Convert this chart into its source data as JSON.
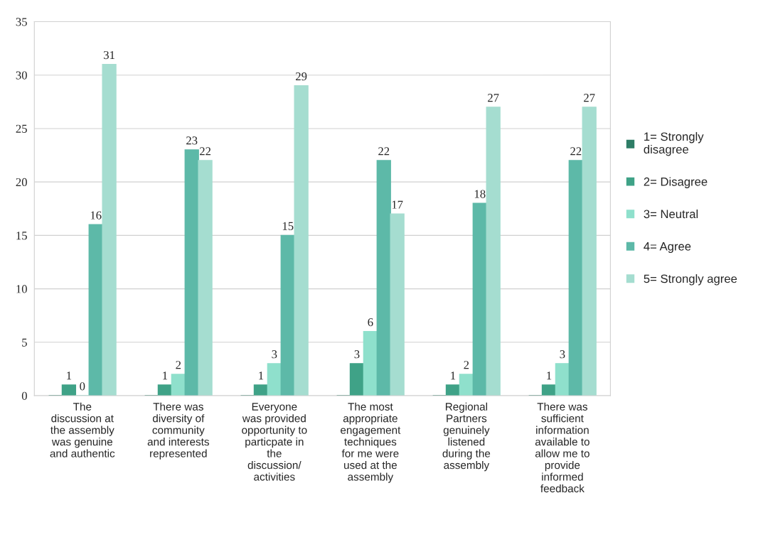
{
  "chart_data": {
    "type": "bar",
    "categories": [
      "The\ndiscussion at\nthe assembly\nwas genuine\nand authentic",
      "There was\ndiversity of\ncommunity\nand interests\nrepresented",
      "Everyone\nwas provided\nopportunity to\nparticpate in\nthe\ndiscussion/\nactivities",
      "The most\nappropriate\nengagement\ntechniques\nfor me were\nused at the\nassembly",
      "Regional\nPartners\ngenuinely\nlistened\nduring the\nassembly",
      "There was\nsufficient\ninformation\navailable to\nallow me to\nprovide\ninformed\nfeedback"
    ],
    "series": [
      {
        "name": "1= Strongly\ndisagree",
        "color": "#2e7d66",
        "values": [
          0,
          0,
          0,
          0,
          0,
          0
        ],
        "value_labels": [
          null,
          null,
          null,
          null,
          null,
          null
        ]
      },
      {
        "name": "2= Disagree",
        "color": "#3fa287",
        "values": [
          1,
          1,
          1,
          3,
          1,
          1
        ],
        "value_labels": [
          "1",
          "1",
          "1",
          "3",
          "1",
          "1"
        ]
      },
      {
        "name": "3= Neutral",
        "color": "#8fe0cc",
        "values": [
          0,
          2,
          3,
          6,
          2,
          3
        ],
        "value_labels": [
          "0",
          "2",
          "3",
          "6",
          "2",
          "3"
        ]
      },
      {
        "name": "4= Agree",
        "color": "#5db9a8",
        "values": [
          16,
          23,
          15,
          22,
          18,
          22
        ],
        "value_labels": [
          "16",
          "23",
          "15",
          "22",
          "18",
          "22"
        ]
      },
      {
        "name": "5= Strongly agree",
        "color": "#a5ddd0",
        "values": [
          31,
          22,
          29,
          17,
          27,
          27
        ],
        "value_labels": [
          "31",
          "22",
          "29",
          "17",
          "27",
          "27"
        ]
      }
    ],
    "ylim": [
      0,
      35
    ],
    "yticks": [
      0,
      5,
      10,
      15,
      20,
      25,
      30,
      35
    ],
    "grid": "y",
    "legend": "right"
  }
}
